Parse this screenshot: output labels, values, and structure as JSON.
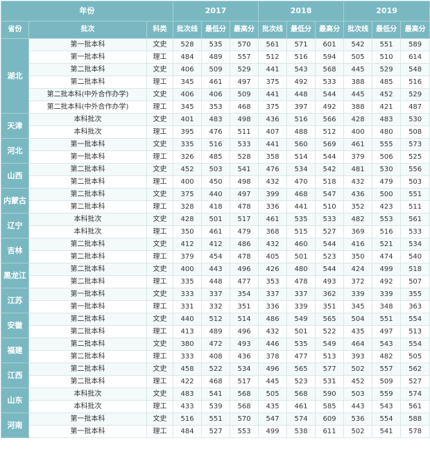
{
  "header": {
    "year_label": "年份",
    "years": [
      "2017",
      "2018",
      "2019"
    ],
    "province_label": "省份",
    "batch_label": "批次",
    "subject_label": "科类",
    "sub_columns": [
      "批次线",
      "最低分",
      "最高分"
    ]
  },
  "groups": [
    {
      "province": "湖北",
      "rows": [
        {
          "batch": "第一批本科",
          "subject": "文史",
          "values": [
            "528",
            "535",
            "570",
            "561",
            "571",
            "601",
            "542",
            "551",
            "589"
          ]
        },
        {
          "batch": "第一批本科",
          "subject": "理工",
          "values": [
            "484",
            "489",
            "557",
            "512",
            "516",
            "594",
            "505",
            "510",
            "614"
          ]
        },
        {
          "batch": "第二批本科",
          "subject": "文史",
          "values": [
            "406",
            "509",
            "529",
            "441",
            "543",
            "568",
            "445",
            "529",
            "548"
          ]
        },
        {
          "batch": "第二批本科",
          "subject": "理工",
          "values": [
            "345",
            "461",
            "497",
            "375",
            "492",
            "533",
            "388",
            "485",
            "516"
          ]
        },
        {
          "batch": "第二批本科(中外合作办学)",
          "subject": "文史",
          "values": [
            "406",
            "406",
            "509",
            "441",
            "448",
            "544",
            "445",
            "452",
            "529"
          ]
        },
        {
          "batch": "第二批本科(中外合作办学)",
          "subject": "理工",
          "values": [
            "345",
            "353",
            "468",
            "375",
            "397",
            "492",
            "388",
            "421",
            "487"
          ]
        }
      ]
    },
    {
      "province": "天津",
      "rows": [
        {
          "batch": "本科批次",
          "subject": "文史",
          "values": [
            "401",
            "483",
            "498",
            "436",
            "516",
            "566",
            "428",
            "483",
            "530"
          ]
        },
        {
          "batch": "本科批次",
          "subject": "理工",
          "values": [
            "395",
            "476",
            "511",
            "407",
            "488",
            "512",
            "400",
            "480",
            "508"
          ]
        }
      ]
    },
    {
      "province": "河北",
      "rows": [
        {
          "batch": "第一批本科",
          "subject": "文史",
          "values": [
            "335",
            "516",
            "533",
            "441",
            "560",
            "569",
            "461",
            "555",
            "573"
          ]
        },
        {
          "batch": "第一批本科",
          "subject": "理工",
          "values": [
            "326",
            "485",
            "528",
            "358",
            "514",
            "544",
            "379",
            "506",
            "525"
          ]
        }
      ]
    },
    {
      "province": "山西",
      "rows": [
        {
          "batch": "第二批本科",
          "subject": "文史",
          "values": [
            "452",
            "503",
            "541",
            "476",
            "534",
            "542",
            "481",
            "530",
            "556"
          ]
        },
        {
          "batch": "第二批本科",
          "subject": "理工",
          "values": [
            "400",
            "450",
            "498",
            "432",
            "470",
            "518",
            "432",
            "479",
            "503"
          ]
        }
      ]
    },
    {
      "province": "内蒙古",
      "rows": [
        {
          "batch": "第二批本科",
          "subject": "文史",
          "values": [
            "375",
            "440",
            "497",
            "399",
            "468",
            "547",
            "436",
            "500",
            "551"
          ]
        },
        {
          "batch": "第二批本科",
          "subject": "理工",
          "values": [
            "328",
            "418",
            "478",
            "336",
            "441",
            "510",
            "352",
            "423",
            "511"
          ]
        }
      ]
    },
    {
      "province": "辽宁",
      "rows": [
        {
          "batch": "本科批次",
          "subject": "文史",
          "values": [
            "428",
            "501",
            "517",
            "461",
            "535",
            "533",
            "482",
            "553",
            "561"
          ]
        },
        {
          "batch": "本科批次",
          "subject": "理工",
          "values": [
            "350",
            "461",
            "479",
            "368",
            "515",
            "527",
            "369",
            "516",
            "533"
          ]
        }
      ]
    },
    {
      "province": "吉林",
      "rows": [
        {
          "batch": "第二批本科",
          "subject": "文史",
          "values": [
            "412",
            "412",
            "486",
            "432",
            "460",
            "544",
            "416",
            "521",
            "534"
          ]
        },
        {
          "batch": "第二批本科",
          "subject": "理工",
          "values": [
            "379",
            "454",
            "478",
            "405",
            "501",
            "523",
            "350",
            "474",
            "540"
          ]
        }
      ]
    },
    {
      "province": "黑龙江",
      "rows": [
        {
          "batch": "第二批本科",
          "subject": "文史",
          "values": [
            "400",
            "443",
            "496",
            "426",
            "480",
            "544",
            "424",
            "499",
            "518"
          ]
        },
        {
          "batch": "第二批本科",
          "subject": "理工",
          "values": [
            "335",
            "448",
            "477",
            "353",
            "478",
            "493",
            "372",
            "492",
            "507"
          ]
        }
      ]
    },
    {
      "province": "江苏",
      "rows": [
        {
          "batch": "第一批本科",
          "subject": "文史",
          "values": [
            "333",
            "337",
            "354",
            "337",
            "337",
            "362",
            "339",
            "339",
            "355"
          ]
        },
        {
          "batch": "第一批本科",
          "subject": "理工",
          "values": [
            "331",
            "332",
            "351",
            "336",
            "339",
            "351",
            "345",
            "348",
            "363"
          ]
        }
      ]
    },
    {
      "province": "安徽",
      "rows": [
        {
          "batch": "第二批本科",
          "subject": "文史",
          "values": [
            "440",
            "512",
            "514",
            "486",
            "549",
            "565",
            "504",
            "551",
            "554"
          ]
        },
        {
          "batch": "第二批本科",
          "subject": "理工",
          "values": [
            "413",
            "489",
            "496",
            "432",
            "501",
            "522",
            "435",
            "497",
            "513"
          ]
        }
      ]
    },
    {
      "province": "福建",
      "rows": [
        {
          "batch": "第二批本科",
          "subject": "文史",
          "values": [
            "380",
            "472",
            "493",
            "446",
            "535",
            "549",
            "464",
            "543",
            "554"
          ]
        },
        {
          "batch": "第二批本科",
          "subject": "理工",
          "values": [
            "333",
            "408",
            "436",
            "378",
            "477",
            "513",
            "393",
            "482",
            "505"
          ]
        }
      ]
    },
    {
      "province": "江西",
      "rows": [
        {
          "batch": "第二批本科",
          "subject": "文史",
          "values": [
            "458",
            "522",
            "534",
            "496",
            "565",
            "577",
            "502",
            "557",
            "562"
          ]
        },
        {
          "batch": "第二批本科",
          "subject": "理工",
          "values": [
            "422",
            "468",
            "517",
            "445",
            "523",
            "531",
            "452",
            "509",
            "527"
          ]
        }
      ]
    },
    {
      "province": "山东",
      "rows": [
        {
          "batch": "本科批次",
          "subject": "文史",
          "values": [
            "483",
            "541",
            "568",
            "505",
            "568",
            "590",
            "503",
            "559",
            "574"
          ]
        },
        {
          "batch": "本科批次",
          "subject": "理工",
          "values": [
            "433",
            "539",
            "568",
            "435",
            "461",
            "585",
            "443",
            "543",
            "561"
          ]
        }
      ]
    },
    {
      "province": "河南",
      "rows": [
        {
          "batch": "第一批本科",
          "subject": "文史",
          "values": [
            "516",
            "551",
            "570",
            "547",
            "574",
            "609",
            "536",
            "554",
            "588"
          ]
        },
        {
          "batch": "第一批本科",
          "subject": "理工",
          "values": [
            "484",
            "527",
            "553",
            "499",
            "538",
            "611",
            "502",
            "541",
            "578"
          ]
        }
      ]
    }
  ]
}
